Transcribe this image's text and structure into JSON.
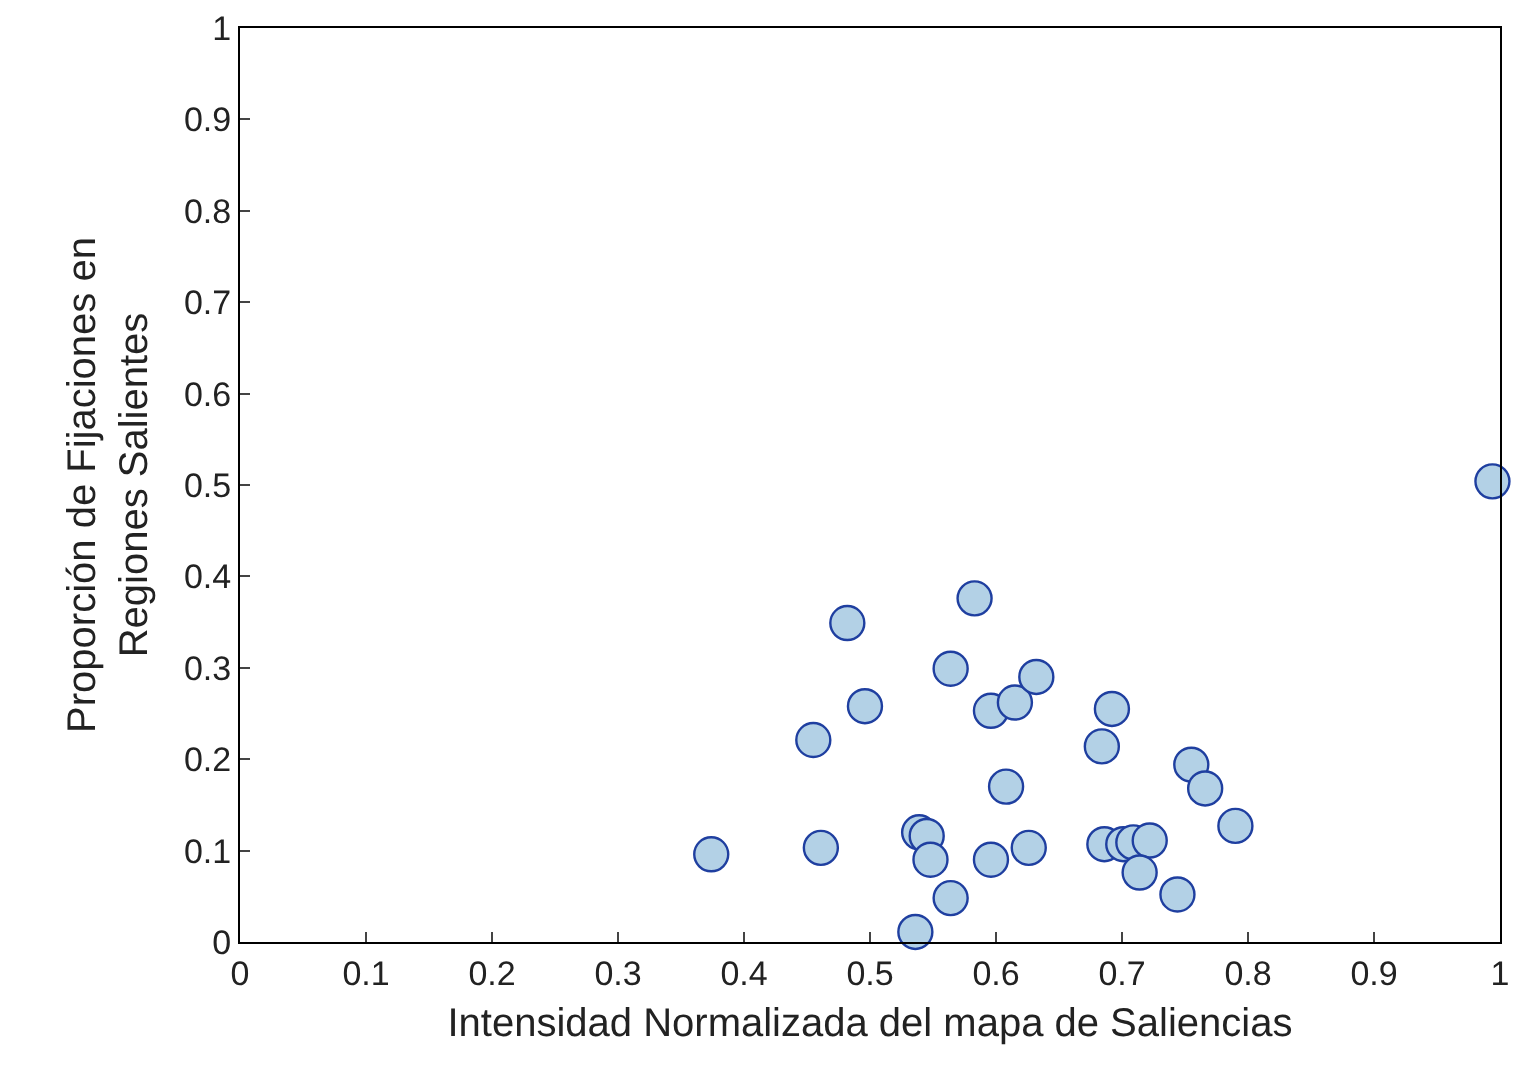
{
  "chart_data": {
    "type": "scatter",
    "xlabel": "Intensidad Normalizada del mapa de Saliencias",
    "ylabel": "Proporción de Fijaciones en\nRegiones Salientes",
    "x": [
      0.374,
      0.461,
      0.455,
      0.482,
      0.496,
      0.539,
      0.545,
      0.548,
      0.536,
      0.564,
      0.564,
      0.583,
      0.596,
      0.596,
      0.608,
      0.615,
      0.632,
      0.626,
      0.684,
      0.692,
      0.686,
      0.701,
      0.709,
      0.722,
      0.714,
      0.744,
      0.755,
      0.766,
      0.79,
      0.994
    ],
    "series": [
      {
        "color": "#b3d1e6",
        "values": [
          0.096,
          0.103,
          0.221,
          0.349,
          0.258,
          0.12,
          0.116,
          0.09,
          0.011,
          0.048,
          0.299,
          0.376,
          0.253,
          0.09,
          0.17,
          0.262,
          0.29,
          0.103,
          0.214,
          0.255,
          0.107,
          0.107,
          0.109,
          0.111,
          0.076,
          0.052,
          0.194,
          0.168,
          0.127,
          0.504
        ]
      }
    ],
    "xlim": [
      0,
      1
    ],
    "ylim": [
      0,
      1
    ],
    "xticks": [
      0,
      0.1,
      0.2,
      0.3,
      0.4,
      0.5,
      0.6,
      0.7,
      0.8,
      0.9,
      1
    ],
    "yticks": [
      0,
      0.1,
      0.2,
      0.3,
      0.4,
      0.5,
      0.6,
      0.7,
      0.8,
      0.9,
      1
    ],
    "marker": "circle",
    "grid": false
  }
}
